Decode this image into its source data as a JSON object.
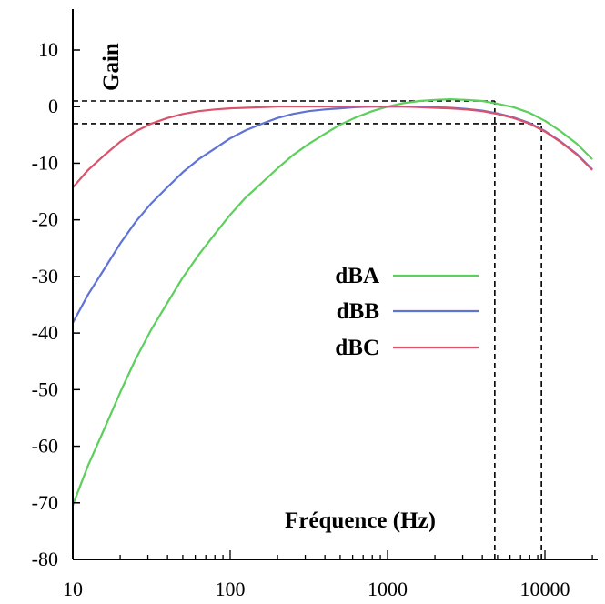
{
  "chart_data": {
    "type": "line",
    "xscale": "log",
    "xlim": [
      10,
      20000
    ],
    "ylim": [
      -80,
      15
    ],
    "xlabel": "Fréquence (Hz)",
    "ylabel": "Gain",
    "x_ticks": [
      {
        "value": 10,
        "label": "10"
      },
      {
        "value": 100,
        "label": "100"
      },
      {
        "value": 1000,
        "label": "1000"
      },
      {
        "value": 10000,
        "label": "10000"
      }
    ],
    "y_ticks": [
      {
        "value": 10,
        "label": "10"
      },
      {
        "value": 0,
        "label": "0"
      },
      {
        "value": -10,
        "label": "-10"
      },
      {
        "value": -20,
        "label": "-20"
      },
      {
        "value": -30,
        "label": "-30"
      },
      {
        "value": -40,
        "label": "-40"
      },
      {
        "value": -50,
        "label": "-50"
      },
      {
        "value": -60,
        "label": "-60"
      },
      {
        "value": -70,
        "label": "-70"
      },
      {
        "value": -80,
        "label": "-80"
      }
    ],
    "grid": false,
    "legend_position": "center-right",
    "series": [
      {
        "name": "dBA",
        "color": "#5ccf5c",
        "x": [
          10,
          12.5,
          16,
          20,
          25,
          31.5,
          40,
          50,
          63,
          80,
          100,
          125,
          160,
          200,
          250,
          315,
          400,
          500,
          630,
          800,
          1000,
          1250,
          1600,
          2000,
          2500,
          3150,
          4000,
          5000,
          6300,
          8000,
          10000,
          12500,
          16000,
          20000
        ],
        "y": [
          -70.4,
          -63.4,
          -56.7,
          -50.5,
          -44.7,
          -39.4,
          -34.6,
          -30.2,
          -26.2,
          -22.5,
          -19.1,
          -16.1,
          -13.4,
          -10.9,
          -8.6,
          -6.6,
          -4.8,
          -3.2,
          -1.9,
          -0.8,
          0,
          0.6,
          1.0,
          1.2,
          1.3,
          1.2,
          1.0,
          0.5,
          -0.1,
          -1.1,
          -2.5,
          -4.3,
          -6.6,
          -9.3
        ]
      },
      {
        "name": "dBB",
        "color": "#5f72d6",
        "x": [
          10,
          12.5,
          16,
          20,
          25,
          31.5,
          40,
          50,
          63,
          80,
          100,
          125,
          160,
          200,
          250,
          315,
          400,
          500,
          630,
          800,
          1000,
          1250,
          1600,
          2000,
          2500,
          3150,
          4000,
          5000,
          6300,
          8000,
          10000,
          12500,
          16000,
          20000
        ],
        "y": [
          -38.2,
          -33.2,
          -28.5,
          -24.2,
          -20.4,
          -17.1,
          -14.2,
          -11.6,
          -9.3,
          -7.4,
          -5.6,
          -4.2,
          -3.0,
          -2.0,
          -1.3,
          -0.8,
          -0.5,
          -0.3,
          -0.1,
          0,
          0,
          0,
          0,
          -0.1,
          -0.2,
          -0.4,
          -0.7,
          -1.2,
          -1.9,
          -2.9,
          -4.3,
          -6.1,
          -8.4,
          -11.1
        ]
      },
      {
        "name": "dBC",
        "color": "#d9536a",
        "x": [
          10,
          12.5,
          16,
          20,
          25,
          31.5,
          40,
          50,
          63,
          80,
          100,
          125,
          160,
          200,
          250,
          315,
          400,
          500,
          630,
          800,
          1000,
          1250,
          1600,
          2000,
          2500,
          3150,
          4000,
          5000,
          6300,
          8000,
          10000,
          12500,
          16000,
          20000
        ],
        "y": [
          -14.3,
          -11.2,
          -8.5,
          -6.2,
          -4.4,
          -3.0,
          -2.0,
          -1.3,
          -0.8,
          -0.5,
          -0.3,
          -0.2,
          -0.1,
          0,
          0,
          0,
          0,
          0,
          0,
          0,
          0,
          0,
          -0.1,
          -0.2,
          -0.3,
          -0.5,
          -0.8,
          -1.3,
          -2.0,
          -3.0,
          -4.4,
          -6.2,
          -8.5,
          -11.2
        ]
      }
    ],
    "reference_lines": [
      {
        "type": "horizontal",
        "y": 1,
        "x_from": 10,
        "x_to": 4800
      },
      {
        "type": "horizontal",
        "y": -3,
        "x_from": 10,
        "x_to": 9500
      },
      {
        "type": "vertical",
        "x": 4800,
        "y_from": -80,
        "y_to": 1
      },
      {
        "type": "vertical",
        "x": 9500,
        "y_from": -80,
        "y_to": -3
      }
    ]
  }
}
